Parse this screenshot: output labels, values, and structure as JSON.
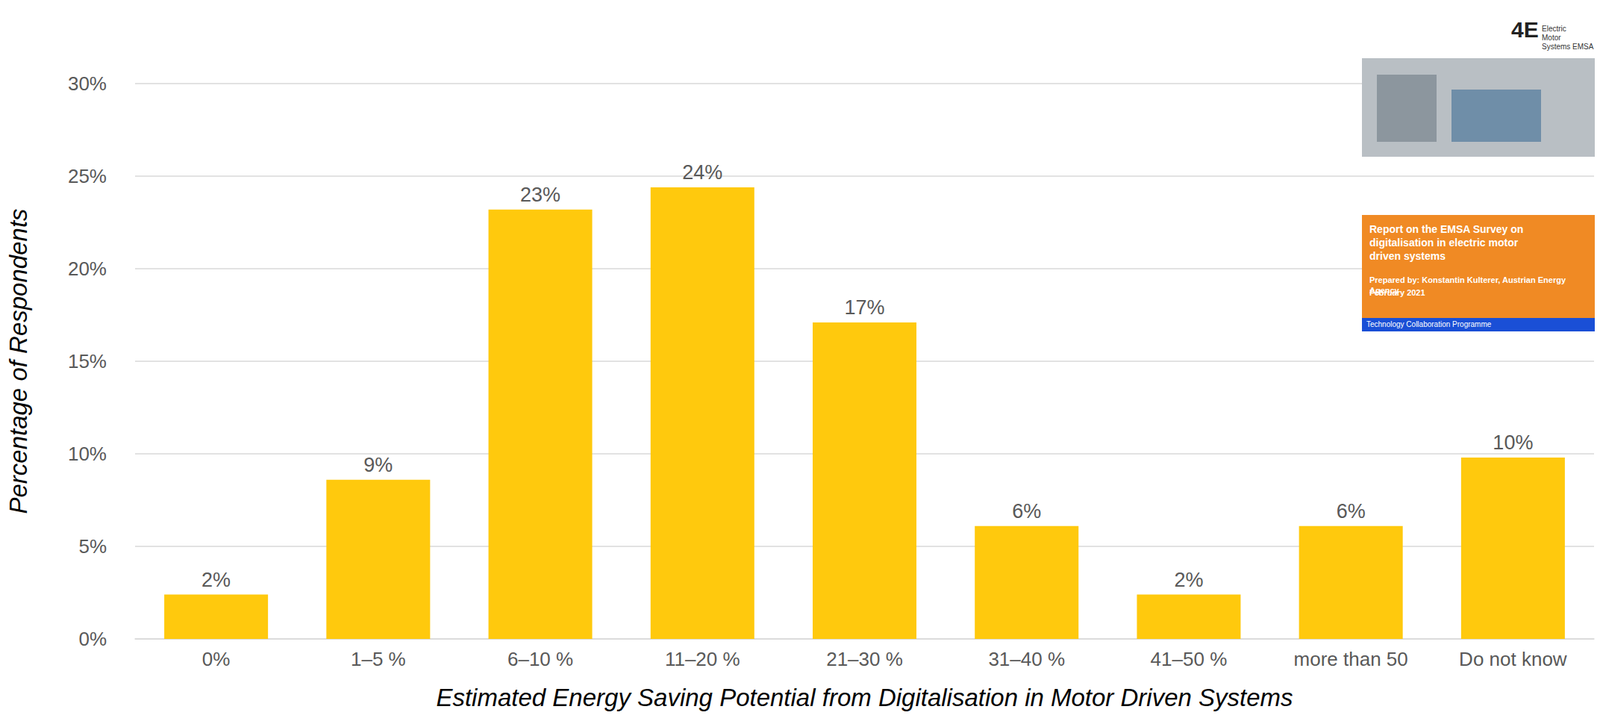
{
  "chart_data": {
    "type": "bar",
    "x_label": "Estimated Energy Saving Potential from Digitalisation in Motor Driven Systems",
    "y_label": "Percentage of Respondents",
    "categories": [
      "0%",
      "1–5 %",
      "6–10 %",
      "11–20 %",
      "21–30 %",
      "31–40 %",
      "41–50 %",
      "more than 50",
      "Do not know"
    ],
    "values": [
      2.4,
      8.6,
      23.2,
      24.4,
      17.1,
      6.1,
      2.4,
      6.1,
      9.8
    ],
    "value_labels": [
      "2%",
      "9%",
      "23%",
      "24%",
      "17%",
      "6%",
      "2%",
      "6%",
      "10%"
    ],
    "color": "#FFC90D",
    "ylim": [
      0,
      30
    ],
    "yticks": [
      {
        "value": 0,
        "label": "0%"
      },
      {
        "value": 5,
        "label": "5%"
      },
      {
        "value": 10,
        "label": "10%"
      },
      {
        "value": 15,
        "label": "15%"
      },
      {
        "value": 20,
        "label": "20%"
      },
      {
        "value": 25,
        "label": "25%"
      },
      {
        "value": 30,
        "label": "30%"
      }
    ],
    "grid": true,
    "data_labels": true,
    "annotations": [
      "4E",
      "Electric Motor Systems EMSA",
      "Report on the EMSA Survey on digitalisation in electric motor driven systems",
      "Prepared by: Konstantin Kulterer, Austrian Energy Agency",
      "February 2021",
      "Technology Collaboration Programme"
    ]
  }
}
